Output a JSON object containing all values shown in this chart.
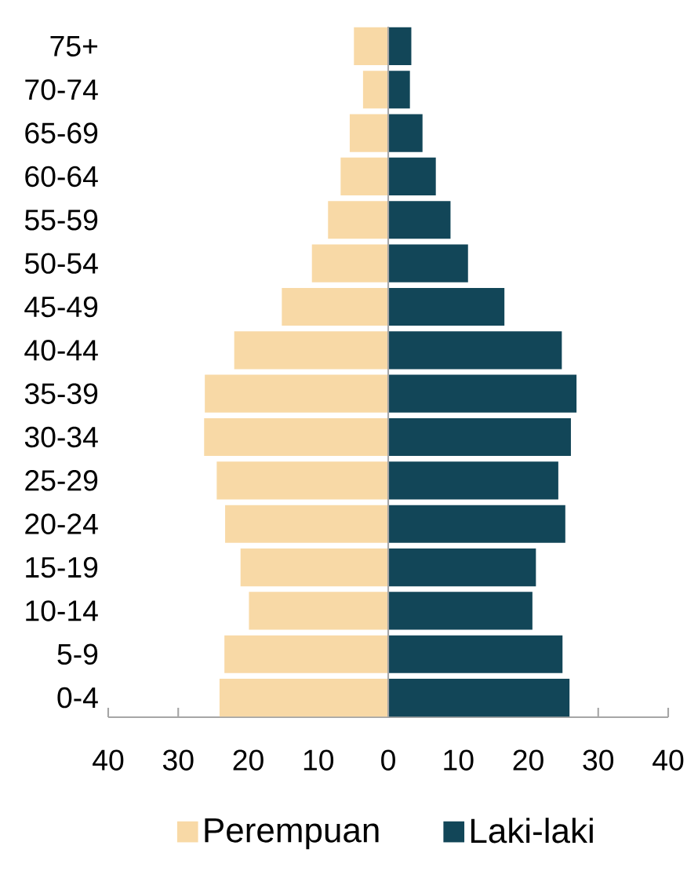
{
  "chart_data": {
    "type": "bar",
    "orientation": "horizontal",
    "stacked": true,
    "categories": [
      "75+",
      "70-74",
      "65-69",
      "60-64",
      "55-59",
      "50-54",
      "45-49",
      "40-44",
      "35-39",
      "30-34",
      "25-29",
      "20-24",
      "15-19",
      "10-14",
      "5-9",
      "0-4"
    ],
    "series": [
      {
        "name": "Perempuan",
        "color": "#f8d9a6",
        "values": [
          -4.9,
          -3.6,
          -5.5,
          -6.8,
          -8.6,
          -10.9,
          -15.2,
          -22.0,
          -26.2,
          -26.3,
          -24.5,
          -23.3,
          -21.1,
          -19.9,
          -23.4,
          -24.1
        ]
      },
      {
        "name": "Laki-laki",
        "color": "#124658",
        "values": [
          3.3,
          3.1,
          4.9,
          6.8,
          8.9,
          11.4,
          16.6,
          24.8,
          26.9,
          26.1,
          24.3,
          25.3,
          21.1,
          20.6,
          24.9,
          25.9
        ]
      }
    ],
    "xlim": [
      -40,
      40
    ],
    "xticks": [
      {
        "value": -40,
        "label": "40"
      },
      {
        "value": -30,
        "label": "30"
      },
      {
        "value": -20,
        "label": "20"
      },
      {
        "value": -10,
        "label": "10"
      },
      0,
      10,
      20,
      30,
      40
    ],
    "legend": "bottom"
  }
}
